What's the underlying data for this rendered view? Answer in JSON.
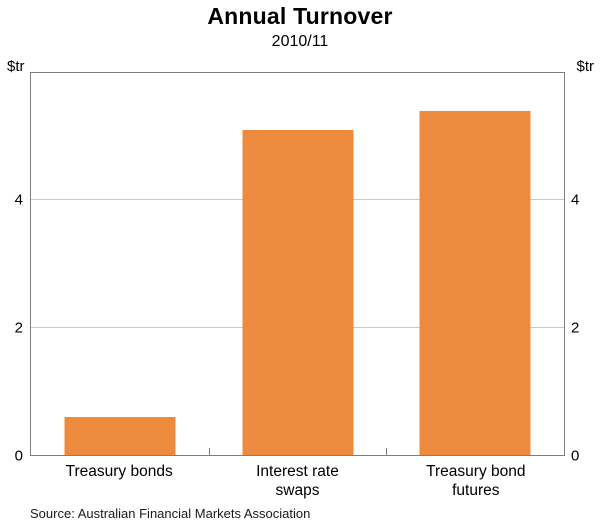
{
  "title": "Annual Turnover",
  "subtitle": "2010/11",
  "unit_left": "$tr",
  "unit_right": "$tr",
  "source": "Source: Australian Financial Markets Association",
  "x_label_lines": [
    [
      "Treasury bonds"
    ],
    [
      "Interest rate",
      "swaps"
    ],
    [
      "Treasury bond",
      "futures"
    ]
  ],
  "chart_data": {
    "type": "bar",
    "categories": [
      "Treasury bonds",
      "Interest rate swaps",
      "Treasury bond futures"
    ],
    "values": [
      0.6,
      5.1,
      5.4
    ],
    "title": "Annual Turnover",
    "subtitle": "2010/11",
    "xlabel": "",
    "ylabel": "$tr",
    "ylim": [
      0,
      6
    ],
    "yticks": [
      0,
      2,
      4
    ],
    "grid": true,
    "legend": false,
    "bar_color": "#ee8a3d",
    "frame_color": "#7f7f7f",
    "gridline_color": "#c9c9c9"
  }
}
